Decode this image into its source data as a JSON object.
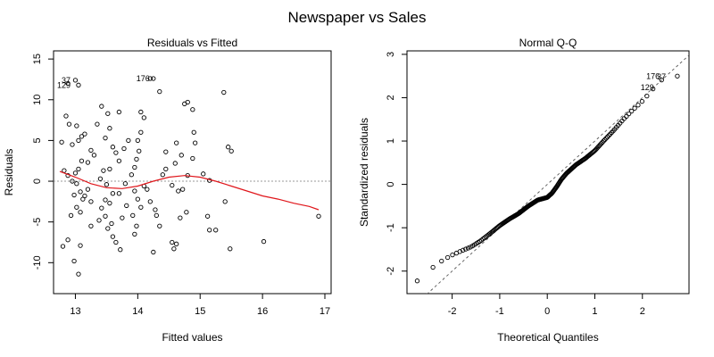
{
  "figure_title": "Newspaper vs Sales",
  "colors": {
    "smooth": "#e0161b",
    "point": "#000000",
    "zero_line": "#9a9a9a",
    "ref_line": "#555555"
  },
  "chart_data": [
    {
      "type": "scatter",
      "title": "Residuals vs Fitted",
      "xlabel": "Fitted values",
      "ylabel": "Residuals",
      "xlim": [
        12.65,
        17.1
      ],
      "ylim": [
        -13.8,
        16.0
      ],
      "xticks": [
        13,
        14,
        15,
        16,
        17
      ],
      "yticks": [
        -10,
        -5,
        0,
        5,
        10,
        15
      ],
      "grid": false,
      "zero_line": 0,
      "annotations": [
        {
          "text": "37",
          "x": 12.98,
          "y": 12.4
        },
        {
          "text": "129",
          "x": 12.98,
          "y": 11.8
        },
        {
          "text": "176",
          "x": 14.25,
          "y": 12.6
        }
      ],
      "smooth": [
        [
          12.75,
          1.2
        ],
        [
          13.0,
          0.5
        ],
        [
          13.25,
          -0.3
        ],
        [
          13.5,
          -0.8
        ],
        [
          13.75,
          -0.9
        ],
        [
          14.0,
          -0.6
        ],
        [
          14.25,
          0.0
        ],
        [
          14.5,
          0.5
        ],
        [
          14.75,
          0.7
        ],
        [
          15.0,
          0.5
        ],
        [
          15.25,
          0.0
        ],
        [
          15.5,
          -0.6
        ],
        [
          15.75,
          -1.2
        ],
        [
          16.0,
          -1.8
        ],
        [
          16.25,
          -2.2
        ],
        [
          16.5,
          -2.7
        ],
        [
          16.75,
          -3.1
        ],
        [
          16.9,
          -3.5
        ]
      ],
      "points": [
        [
          12.88,
          12.0
        ],
        [
          13.0,
          12.4
        ],
        [
          13.05,
          11.8
        ],
        [
          14.25,
          12.6
        ],
        [
          14.35,
          11.0
        ],
        [
          15.38,
          10.9
        ],
        [
          12.85,
          8.0
        ],
        [
          12.9,
          7.0
        ],
        [
          13.02,
          6.8
        ],
        [
          12.95,
          4.5
        ],
        [
          12.78,
          4.8
        ],
        [
          13.1,
          5.5
        ],
        [
          13.15,
          5.8
        ],
        [
          13.05,
          5.0
        ],
        [
          13.25,
          3.8
        ],
        [
          13.3,
          3.2
        ],
        [
          13.2,
          2.3
        ],
        [
          13.1,
          2.5
        ],
        [
          13.05,
          1.5
        ],
        [
          13.0,
          1.0
        ],
        [
          12.88,
          0.7
        ],
        [
          12.82,
          1.3
        ],
        [
          12.95,
          0.0
        ],
        [
          13.02,
          -0.3
        ],
        [
          13.08,
          -1.3
        ],
        [
          12.98,
          -1.7
        ],
        [
          13.12,
          -2.2
        ],
        [
          13.02,
          -3.2
        ],
        [
          13.08,
          -3.8
        ],
        [
          13.15,
          -1.8
        ],
        [
          13.2,
          -1.0
        ],
        [
          13.25,
          -2.5
        ],
        [
          12.93,
          -4.2
        ],
        [
          12.88,
          -7.2
        ],
        [
          12.8,
          -8.0
        ],
        [
          12.98,
          -9.8
        ],
        [
          13.05,
          -11.4
        ],
        [
          13.08,
          -7.9
        ],
        [
          13.25,
          -5.5
        ],
        [
          13.35,
          7.0
        ],
        [
          13.42,
          9.2
        ],
        [
          13.52,
          8.3
        ],
        [
          13.55,
          6.5
        ],
        [
          13.48,
          5.3
        ],
        [
          13.6,
          4.2
        ],
        [
          13.65,
          3.5
        ],
        [
          13.7,
          2.5
        ],
        [
          13.55,
          1.5
        ],
        [
          13.45,
          1.3
        ],
        [
          13.4,
          0.3
        ],
        [
          13.5,
          -0.4
        ],
        [
          13.6,
          -1.5
        ],
        [
          13.48,
          -2.3
        ],
        [
          13.55,
          -2.7
        ],
        [
          13.42,
          -3.3
        ],
        [
          13.38,
          -4.8
        ],
        [
          13.48,
          -4.3
        ],
        [
          13.52,
          -5.8
        ],
        [
          13.6,
          -6.8
        ],
        [
          13.58,
          -5.2
        ],
        [
          13.65,
          -7.5
        ],
        [
          13.72,
          -8.4
        ],
        [
          13.75,
          -4.5
        ],
        [
          13.82,
          -3.0
        ],
        [
          13.7,
          -1.5
        ],
        [
          13.8,
          -0.3
        ],
        [
          13.78,
          4.0
        ],
        [
          13.85,
          5.0
        ],
        [
          13.7,
          8.5
        ],
        [
          13.9,
          0.8
        ],
        [
          13.95,
          1.7
        ],
        [
          13.98,
          2.7
        ],
        [
          14.02,
          3.7
        ],
        [
          14.0,
          5.0
        ],
        [
          14.05,
          6.0
        ],
        [
          14.1,
          7.8
        ],
        [
          14.05,
          8.5
        ],
        [
          14.2,
          12.6
        ],
        [
          13.95,
          -1.2
        ],
        [
          14.0,
          -2.2
        ],
        [
          14.05,
          -3.2
        ],
        [
          13.92,
          -4.2
        ],
        [
          13.98,
          -5.5
        ],
        [
          13.95,
          -6.5
        ],
        [
          14.1,
          -0.6
        ],
        [
          14.15,
          -1.0
        ],
        [
          14.2,
          -2.5
        ],
        [
          14.28,
          -3.5
        ],
        [
          14.3,
          -4.2
        ],
        [
          14.35,
          -5.5
        ],
        [
          14.25,
          -8.7
        ],
        [
          14.4,
          0.8
        ],
        [
          14.45,
          1.5
        ],
        [
          14.45,
          3.6
        ],
        [
          14.6,
          2.2
        ],
        [
          14.7,
          3.2
        ],
        [
          14.62,
          4.7
        ],
        [
          14.8,
          9.7
        ],
        [
          14.75,
          9.5
        ],
        [
          14.88,
          8.8
        ],
        [
          14.9,
          6.0
        ],
        [
          14.92,
          4.7
        ],
        [
          14.88,
          2.8
        ],
        [
          14.8,
          0.7
        ],
        [
          14.55,
          -0.5
        ],
        [
          14.65,
          -1.2
        ],
        [
          14.72,
          -1.0
        ],
        [
          14.78,
          -3.8
        ],
        [
          14.68,
          -4.5
        ],
        [
          14.55,
          -7.5
        ],
        [
          14.58,
          -8.3
        ],
        [
          14.62,
          -7.7
        ],
        [
          15.05,
          0.9
        ],
        [
          15.15,
          0.1
        ],
        [
          15.12,
          -4.3
        ],
        [
          15.15,
          -6.0
        ],
        [
          15.25,
          -6.0
        ],
        [
          15.4,
          -2.5
        ],
        [
          15.45,
          4.2
        ],
        [
          15.5,
          3.7
        ],
        [
          15.48,
          -8.3
        ],
        [
          16.02,
          -7.4
        ],
        [
          16.9,
          -4.3
        ]
      ]
    },
    {
      "type": "scatter",
      "title": "Normal Q-Q",
      "xlabel": "Theoretical Quantiles",
      "ylabel": "Standardized residuals",
      "xlim": [
        -2.95,
        2.98
      ],
      "ylim": [
        -2.52,
        3.08
      ],
      "xticks": [
        -2,
        -1,
        0,
        1,
        2
      ],
      "yticks": [
        -2,
        -1,
        0,
        1,
        2,
        3
      ],
      "grid": false,
      "ref_line": {
        "slope": 1.0,
        "intercept": 0.0
      },
      "annotations": [
        {
          "text": "176",
          "x": 2.42,
          "y": 2.49
        },
        {
          "text": "129",
          "x": 2.3,
          "y": 2.24
        },
        {
          "text": "37",
          "x": 2.55,
          "y": 2.48
        }
      ],
      "knots": [
        [
          -2.75,
          -2.24
        ],
        [
          -2.4,
          -1.91
        ],
        [
          -2.2,
          -1.75
        ],
        [
          -2.0,
          -1.63
        ],
        [
          -1.8,
          -1.53
        ],
        [
          -1.6,
          -1.44
        ],
        [
          -1.4,
          -1.3
        ],
        [
          -1.2,
          -1.13
        ],
        [
          -1.0,
          -0.95
        ],
        [
          -0.8,
          -0.8
        ],
        [
          -0.6,
          -0.67
        ],
        [
          -0.4,
          -0.5
        ],
        [
          -0.2,
          -0.36
        ],
        [
          0.0,
          -0.3
        ],
        [
          0.1,
          -0.2
        ],
        [
          0.2,
          -0.05
        ],
        [
          0.3,
          0.12
        ],
        [
          0.4,
          0.25
        ],
        [
          0.6,
          0.45
        ],
        [
          0.8,
          0.6
        ],
        [
          1.0,
          0.78
        ],
        [
          1.2,
          1.02
        ],
        [
          1.4,
          1.25
        ],
        [
          1.6,
          1.5
        ],
        [
          1.8,
          1.72
        ],
        [
          2.0,
          1.92
        ],
        [
          2.2,
          2.17
        ],
        [
          2.35,
          2.38
        ],
        [
          2.52,
          2.47
        ],
        [
          2.75,
          2.5
        ]
      ]
    }
  ]
}
